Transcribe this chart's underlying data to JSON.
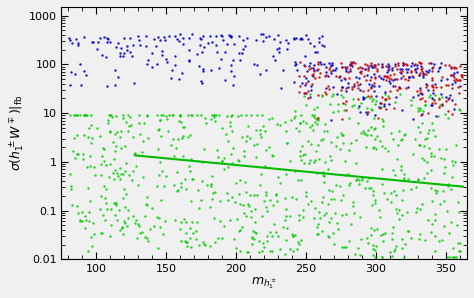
{
  "title": "",
  "ylabel": "$\\sigma(h_1^\\pm W^\\mp)|_{\\mathrm{fb}}$",
  "xlabel": "$m_{h_1^\\pm}$",
  "xmin": 75,
  "xmax": 365,
  "ymin": 0.01,
  "ymax": 1500,
  "line_color": "#00bb00",
  "green_color": "#00cc00",
  "blue_color": "#0000cc",
  "red_color": "#cc0000",
  "bg_color": "#f0f0f0",
  "point_size": 3
}
